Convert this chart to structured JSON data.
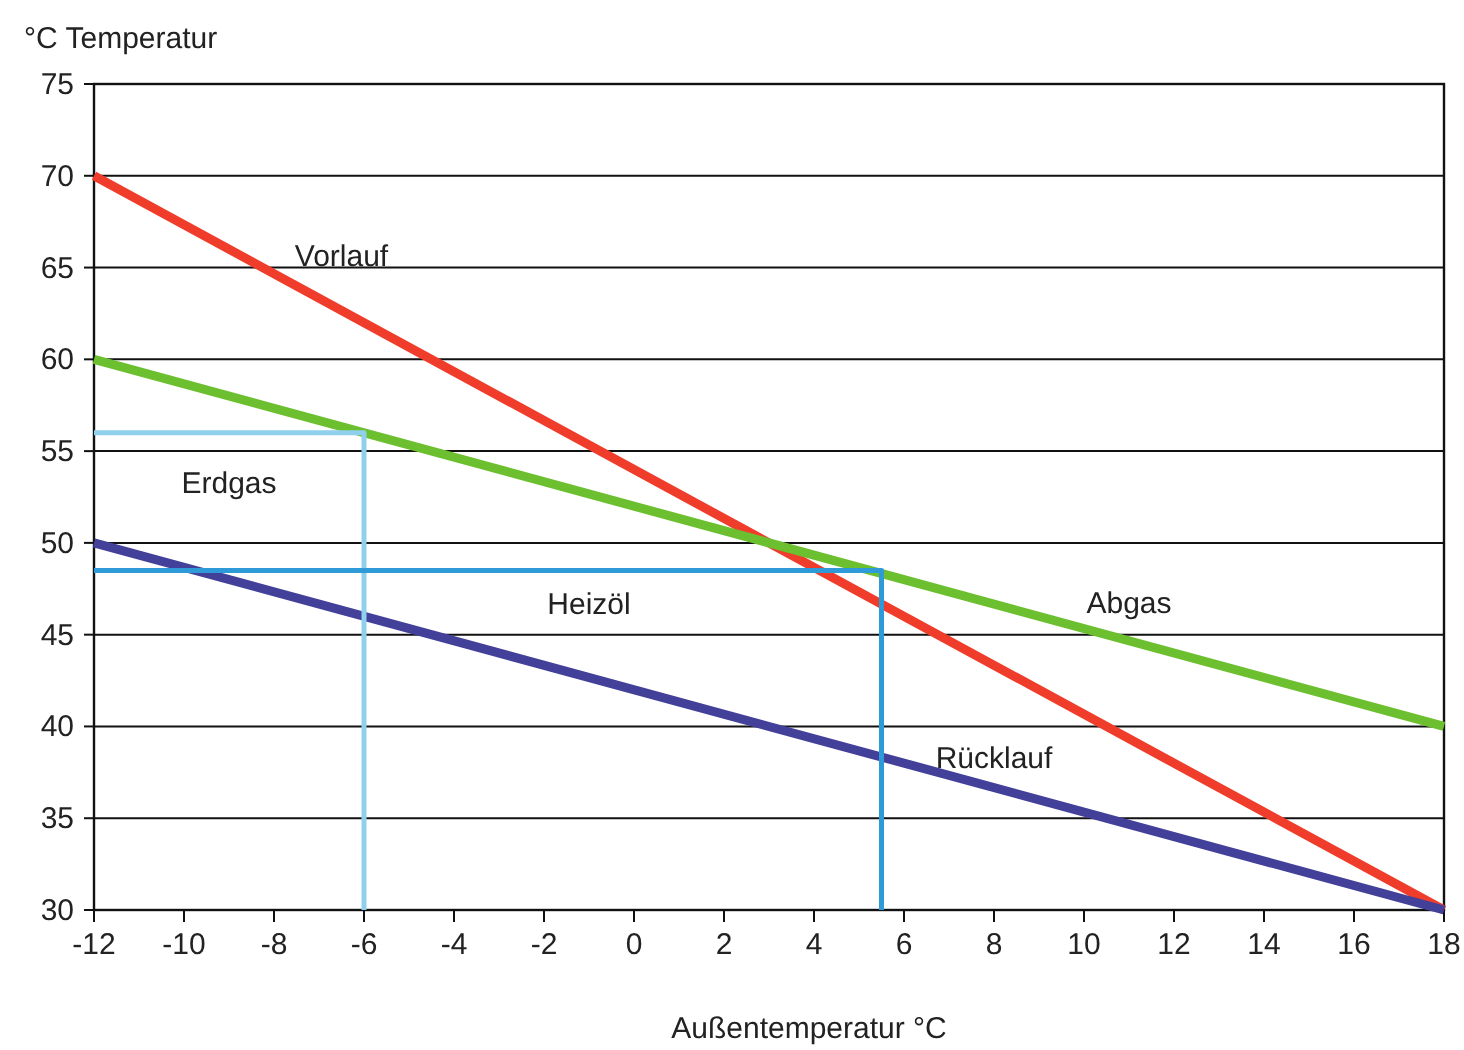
{
  "chart_data": {
    "type": "line",
    "ylabel": "°C  Temperatur",
    "xlabel": "Außentemperatur °C",
    "xlim": [
      -12,
      18
    ],
    "xticks": [
      -12,
      -10,
      -8,
      -6,
      -4,
      -2,
      0,
      2,
      4,
      6,
      8,
      10,
      12,
      14,
      16,
      18
    ],
    "ylim": [
      30,
      75
    ],
    "yticks": [
      30,
      35,
      40,
      45,
      50,
      55,
      60,
      65,
      70,
      75
    ],
    "grid": "y",
    "legend": false,
    "marker": "none",
    "line_style": "solid",
    "series": [
      {
        "name": "Vorlauf",
        "color": "#f03c2a",
        "x": [
          -12,
          18
        ],
        "values": [
          70,
          30
        ]
      },
      {
        "name": "Abgas",
        "color": "#6cbf2e",
        "x": [
          -12,
          18
        ],
        "values": [
          60,
          40
        ]
      },
      {
        "name": "Rücklauf",
        "color": "#43409a",
        "x": [
          -12,
          18
        ],
        "values": [
          50,
          30
        ]
      },
      {
        "name": "Erdgas",
        "color": "#8fd0ec",
        "x": [
          -12,
          -6,
          -6
        ],
        "values": [
          56,
          56,
          30
        ]
      },
      {
        "name": "Heizöl",
        "color": "#2f9ad8",
        "x": [
          -12,
          5.5,
          5.5
        ],
        "values": [
          48.5,
          48.5,
          30
        ]
      }
    ]
  }
}
